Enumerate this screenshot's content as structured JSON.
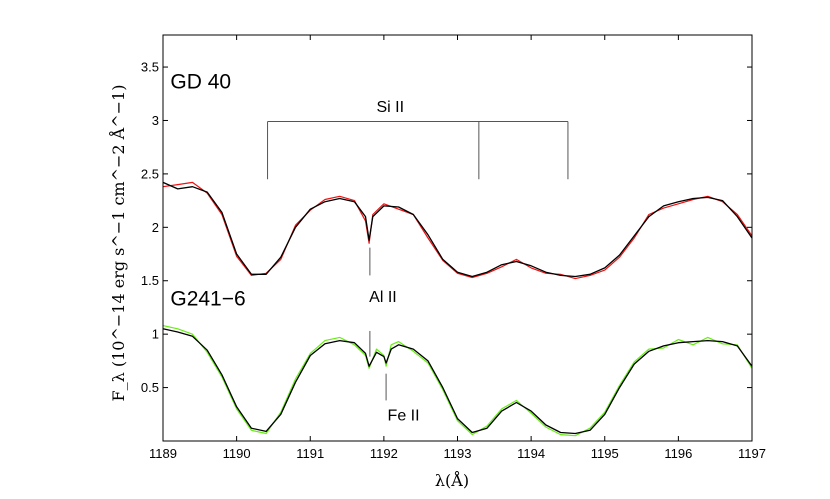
{
  "chart_data": {
    "type": "line",
    "xlabel": "λ(Å)",
    "ylabel": "F_λ (10^−14 erg s^−1 cm^−2 Å^−1)",
    "xlim": [
      1189,
      1197
    ],
    "ylim": [
      0,
      3.8
    ],
    "x_ticks": [
      "1189",
      "1190",
      "1191",
      "1192",
      "1193",
      "1194",
      "1195",
      "1196",
      "1197"
    ],
    "y_ticks": [
      "0.5",
      "1",
      "1.5",
      "2",
      "2.5",
      "3",
      "3.5"
    ],
    "grid": false,
    "colors": {
      "gd40_obs": "#ee1111",
      "g241_obs": "#66ee11",
      "model": "#000000",
      "axis": "#000000",
      "marker": "#555555"
    },
    "panel_labels": [
      {
        "text": "GD 40",
        "x": 1189.1,
        "y": 3.3
      },
      {
        "text": "G241−6",
        "x": 1189.1,
        "y": 1.27
      }
    ],
    "line_ids": [
      {
        "label": "Si II",
        "label_x": 1191.9,
        "label_y": 3.08,
        "bar_y": 2.99,
        "lines": [
          1190.42,
          1193.29,
          1194.5
        ],
        "tick_bottom": 2.45
      },
      {
        "label": "Al II",
        "label_x": 1191.8,
        "label_y": 1.3,
        "segments": [
          [
            1191.81,
            1.81,
            1.55
          ],
          [
            1191.81,
            1.03,
            0.79
          ]
        ]
      },
      {
        "label": "Fe II",
        "label_x": 1192.05,
        "label_y": 0.19,
        "segments": [
          [
            1192.03,
            0.63,
            0.38
          ]
        ]
      }
    ],
    "series": [
      {
        "name": "GD 40",
        "x": [
          1189.0,
          1189.2,
          1189.4,
          1189.6,
          1189.8,
          1190.0,
          1190.2,
          1190.4,
          1190.6,
          1190.8,
          1191.0,
          1191.2,
          1191.4,
          1191.6,
          1191.75,
          1191.8,
          1191.85,
          1192.0,
          1192.2,
          1192.4,
          1192.6,
          1192.8,
          1193.0,
          1193.2,
          1193.4,
          1193.6,
          1193.8,
          1194.0,
          1194.2,
          1194.4,
          1194.6,
          1194.8,
          1195.0,
          1195.2,
          1195.4,
          1195.6,
          1195.8,
          1196.0,
          1196.2,
          1196.4,
          1196.6,
          1196.8,
          1197.0
        ],
        "model": [
          2.42,
          2.36,
          2.38,
          2.33,
          2.14,
          1.75,
          1.56,
          1.56,
          1.72,
          2.0,
          2.17,
          2.24,
          2.27,
          2.24,
          2.1,
          1.88,
          2.1,
          2.2,
          2.19,
          2.12,
          1.93,
          1.7,
          1.58,
          1.54,
          1.58,
          1.65,
          1.68,
          1.64,
          1.58,
          1.55,
          1.54,
          1.56,
          1.62,
          1.74,
          1.92,
          2.1,
          2.2,
          2.24,
          2.27,
          2.28,
          2.25,
          2.1,
          1.9
        ],
        "observed": [
          2.38,
          2.4,
          2.42,
          2.32,
          2.12,
          1.73,
          1.55,
          1.57,
          1.7,
          2.02,
          2.16,
          2.26,
          2.29,
          2.25,
          2.06,
          1.85,
          2.12,
          2.22,
          2.17,
          2.12,
          1.9,
          1.69,
          1.57,
          1.53,
          1.57,
          1.63,
          1.7,
          1.62,
          1.57,
          1.56,
          1.52,
          1.55,
          1.6,
          1.72,
          1.9,
          2.12,
          2.18,
          2.22,
          2.26,
          2.29,
          2.24,
          2.12,
          1.92
        ]
      },
      {
        "name": "G241−6",
        "x": [
          1189.0,
          1189.2,
          1189.4,
          1189.6,
          1189.8,
          1190.0,
          1190.2,
          1190.4,
          1190.6,
          1190.8,
          1191.0,
          1191.2,
          1191.4,
          1191.6,
          1191.75,
          1191.8,
          1191.9,
          1192.0,
          1192.03,
          1192.1,
          1192.2,
          1192.4,
          1192.6,
          1192.8,
          1193.0,
          1193.2,
          1193.4,
          1193.6,
          1193.8,
          1194.0,
          1194.2,
          1194.4,
          1194.6,
          1194.8,
          1195.0,
          1195.2,
          1195.4,
          1195.6,
          1195.8,
          1196.0,
          1196.2,
          1196.4,
          1196.6,
          1196.8,
          1197.0
        ],
        "model": [
          1.05,
          1.02,
          0.98,
          0.85,
          0.62,
          0.32,
          0.12,
          0.09,
          0.25,
          0.55,
          0.8,
          0.91,
          0.94,
          0.92,
          0.82,
          0.7,
          0.83,
          0.79,
          0.73,
          0.86,
          0.9,
          0.86,
          0.75,
          0.5,
          0.21,
          0.08,
          0.12,
          0.28,
          0.36,
          0.28,
          0.15,
          0.08,
          0.07,
          0.1,
          0.25,
          0.5,
          0.72,
          0.84,
          0.89,
          0.92,
          0.93,
          0.94,
          0.93,
          0.89,
          0.7
        ],
        "observed": [
          1.08,
          1.05,
          1.0,
          0.83,
          0.6,
          0.3,
          0.1,
          0.07,
          0.27,
          0.58,
          0.82,
          0.94,
          0.97,
          0.9,
          0.8,
          0.68,
          0.86,
          0.8,
          0.7,
          0.9,
          0.93,
          0.84,
          0.73,
          0.48,
          0.19,
          0.06,
          0.14,
          0.3,
          0.38,
          0.26,
          0.13,
          0.06,
          0.05,
          0.12,
          0.27,
          0.52,
          0.74,
          0.86,
          0.87,
          0.95,
          0.9,
          0.97,
          0.91,
          0.9,
          0.68
        ]
      }
    ]
  }
}
